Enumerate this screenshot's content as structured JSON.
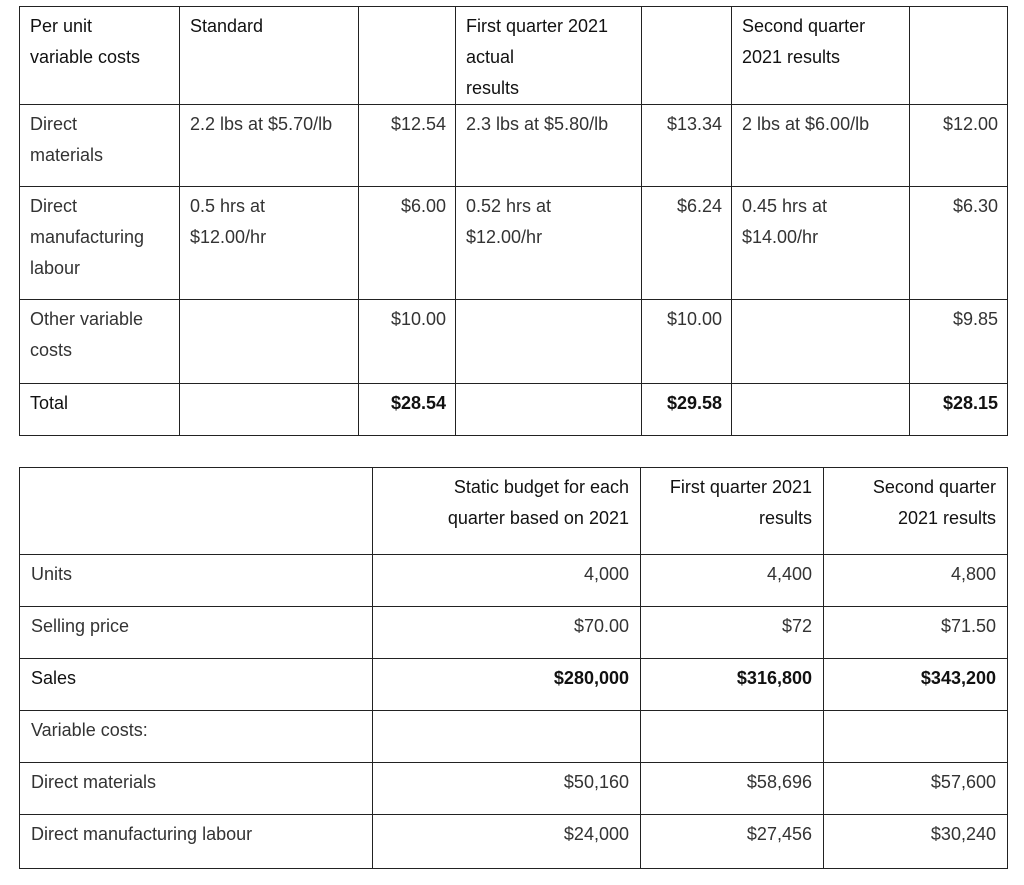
{
  "cost_table": {
    "headers": [
      "Per unit\nvariable costs",
      "Standard",
      "",
      "First quarter 2021 actual\nresults",
      "",
      "Second quarter 2021 results",
      ""
    ],
    "rows": [
      {
        "label": "Direct\nmaterials",
        "std_desc": "2.2 lbs at $5.70/lb",
        "std_amt": "$12.54",
        "q1_desc": "2.3 lbs at $5.80/lb",
        "q1_amt": "$13.34",
        "q2_desc": "2 lbs at $6.00/lb",
        "q2_amt": "$12.00"
      },
      {
        "label": "Direct\nmanufacturing\nlabour",
        "std_desc": "0.5 hrs at\n$12.00/hr",
        "std_amt": "$6.00",
        "q1_desc": "0.52 hrs at\n$12.00/hr",
        "q1_amt": "$6.24",
        "q2_desc": "0.45 hrs at\n$14.00/hr",
        "q2_amt": "$6.30"
      },
      {
        "label": "Other variable\ncosts",
        "std_desc": "",
        "std_amt": "$10.00",
        "q1_desc": "",
        "q1_amt": "$10.00",
        "q2_desc": "",
        "q2_amt": "$9.85"
      },
      {
        "label": "Total",
        "std_desc": "",
        "std_amt": "$28.54",
        "q1_desc": "",
        "q1_amt": "$29.58",
        "q2_desc": "",
        "q2_amt": "$28.15"
      }
    ]
  },
  "budget_table": {
    "headers": [
      "",
      "Static budget for each\nquarter based on 2021",
      "First quarter 2021\nresults",
      "Second quarter\n2021 results"
    ],
    "rows": [
      {
        "label": "Units",
        "static": "4,000",
        "q1": "4,400",
        "q2": "4,800"
      },
      {
        "label": "Selling price",
        "static": "$70.00",
        "q1": "$72",
        "q2": "$71.50"
      },
      {
        "label": "Sales",
        "static": "$280,000",
        "q1": "$316,800",
        "q2": "$343,200"
      },
      {
        "label": "Variable costs:",
        "static": "",
        "q1": "",
        "q2": ""
      },
      {
        "label": "Direct materials",
        "static": "$50,160",
        "q1": "$58,696",
        "q2": "$57,600"
      },
      {
        "label": "Direct manufacturing labour",
        "static": "$24,000",
        "q1": "$27,456",
        "q2": "$30,240"
      }
    ]
  }
}
